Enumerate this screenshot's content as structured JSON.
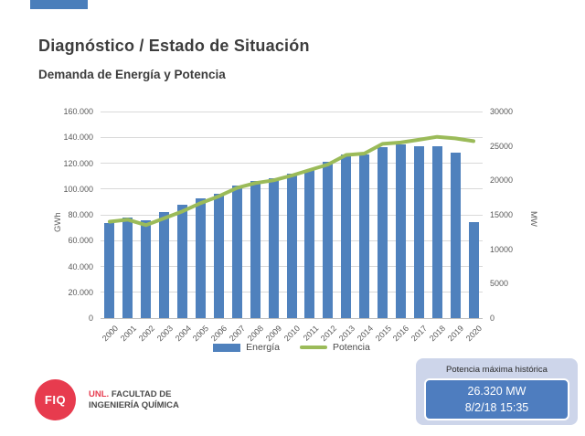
{
  "slide": {
    "title": "Diagnóstico / Estado de Situación",
    "subtitle": "Demanda de Energía y Potencia"
  },
  "colors": {
    "accent_bar": "#4a7ebb",
    "bar_blue": "#4f81bd",
    "line_green": "#9bbb59",
    "logo_red": "#e73b4e",
    "infobox_bg": "#cdd5ea",
    "infobox_inner_bg": "#4e7dbf",
    "axis_text": "#595959",
    "gridline": "#d9d9d9"
  },
  "chart_data": {
    "type": "bar",
    "subtype": "bar+line combo, dual axis",
    "categories": [
      "2000",
      "2001",
      "2002",
      "2003",
      "2004",
      "2005",
      "2006",
      "2007",
      "2008",
      "2009",
      "2010",
      "2011",
      "2012",
      "2013",
      "2014",
      "2015",
      "2016",
      "2017",
      "2018",
      "2019",
      "2020"
    ],
    "series": [
      {
        "name": "Energía",
        "type": "bar",
        "axis": "left",
        "unit": "GWh",
        "values": [
          73500,
          78000,
          76000,
          82000,
          87500,
          92500,
          96500,
          102500,
          106500,
          108000,
          112000,
          115000,
          121000,
          126500,
          127000,
          132500,
          134500,
          133000,
          133000,
          128500,
          74500
        ]
      },
      {
        "name": "Potencia",
        "type": "line",
        "axis": "right",
        "unit": "MW",
        "values": [
          14000,
          14300,
          13500,
          14500,
          15500,
          16700,
          17700,
          18900,
          19600,
          20000,
          20700,
          21500,
          22300,
          23700,
          23900,
          25300,
          25500,
          25900,
          26320,
          26100,
          25700
        ]
      }
    ],
    "left_axis": {
      "label": "GWh",
      "min": 0,
      "max": 160000,
      "ticks": [
        "160.000",
        "140.000",
        "120.000",
        "100.000",
        "80.000",
        "60.000",
        "40.000",
        "20.000",
        "0"
      ]
    },
    "right_axis": {
      "label": "MW",
      "min": 0,
      "max": 30000,
      "ticks": [
        "30000",
        "25000",
        "20000",
        "15000",
        "10000",
        "5000",
        "0"
      ]
    },
    "legend": [
      "Energía",
      "Potencia"
    ],
    "layout": {
      "legend_position": "bottom",
      "grid": true,
      "x_tick_rotation": -45
    }
  },
  "footer": {
    "logo_circle_text": "FIQ",
    "logo_brand": "UNL.",
    "logo_line1": "FACULTAD DE",
    "logo_line2": "INGENIERÍA QUÍMICA"
  },
  "infobox": {
    "caption": "Potencia máxima histórica",
    "value": "26.320 MW",
    "timestamp": "8/2/18 15:35"
  }
}
